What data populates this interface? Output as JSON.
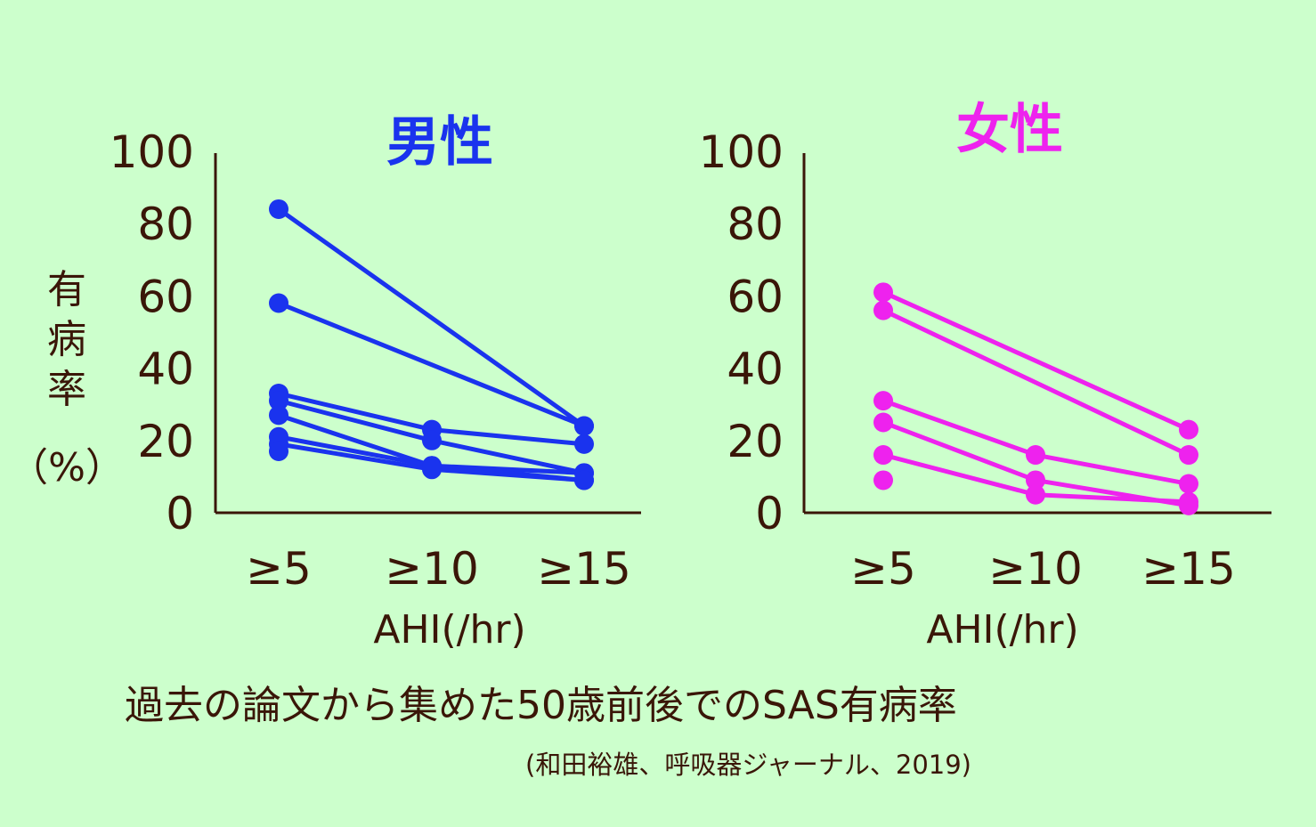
{
  "chart_data": [
    {
      "type": "line",
      "title": "男性",
      "title_color": "#1a33ee",
      "series_color": "#1a33ee",
      "ylabel": [
        "有",
        "病",
        "率",
        "（%）"
      ],
      "xlabel": "AHI(/hr)",
      "categories": [
        "≥5",
        "≥10",
        "≥15"
      ],
      "ylim": [
        0,
        100
      ],
      "yticks": [
        0,
        20,
        40,
        60,
        80,
        100
      ],
      "grid": false,
      "series": [
        {
          "values": [
            84,
            null,
            24
          ]
        },
        {
          "values": [
            58,
            null,
            24
          ]
        },
        {
          "values": [
            33,
            23,
            19
          ]
        },
        {
          "values": [
            31,
            20,
            11
          ]
        },
        {
          "values": [
            27,
            13,
            11
          ]
        },
        {
          "values": [
            21,
            13,
            9
          ]
        },
        {
          "values": [
            19,
            12,
            9
          ]
        },
        {
          "values": [
            17,
            null,
            null
          ]
        }
      ]
    },
    {
      "type": "line",
      "title": "女性",
      "title_color": "#ee22ee",
      "series_color": "#ee22ee",
      "xlabel": "AHI(/hr)",
      "categories": [
        "≥5",
        "≥10",
        "≥15"
      ],
      "ylim": [
        0,
        100
      ],
      "yticks": [
        0,
        20,
        40,
        60,
        80,
        100
      ],
      "grid": false,
      "series": [
        {
          "values": [
            61,
            null,
            23
          ]
        },
        {
          "values": [
            56,
            null,
            16
          ]
        },
        {
          "values": [
            31,
            16,
            8
          ]
        },
        {
          "values": [
            25,
            9,
            2
          ]
        },
        {
          "values": [
            16,
            5,
            3
          ]
        },
        {
          "values": [
            9,
            null,
            null
          ]
        }
      ]
    }
  ],
  "caption": "過去の論文から集めた50歳前後でのSAS有病率",
  "source": "(和田裕雄、呼吸器ジャーナル、2019)"
}
